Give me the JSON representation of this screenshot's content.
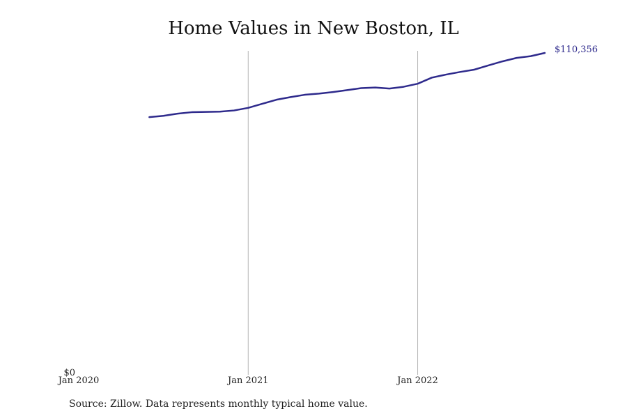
{
  "chart_data": {
    "type": "line",
    "title": "Home Values in New Boston, IL",
    "source": "Source: Zillow. Data represents monthly typical home value.",
    "xlabel": "",
    "ylabel": "",
    "x_ticks": [
      {
        "label": "Jan 2020",
        "date": "2020-01"
      },
      {
        "label": "Jan 2021",
        "date": "2021-01"
      },
      {
        "label": "Jan 2022",
        "date": "2022-01"
      }
    ],
    "y_ticks": [
      {
        "label": "$0",
        "value": 0
      }
    ],
    "ylim": [
      0,
      110356
    ],
    "xlim": [
      "2020-01",
      "2022-10"
    ],
    "grid": {
      "vertical": true,
      "horizontal": false
    },
    "line_color": "#2e2a8c",
    "last_value_label": "$110,356",
    "series": [
      {
        "x": [
          "2020-06",
          "2020-07",
          "2020-08",
          "2020-09",
          "2020-10",
          "2020-11",
          "2020-12",
          "2021-01",
          "2021-02",
          "2021-03",
          "2021-04",
          "2021-05",
          "2021-06",
          "2021-07",
          "2021-08",
          "2021-09",
          "2021-10",
          "2021-11",
          "2021-12",
          "2022-01",
          "2022-02",
          "2022-03",
          "2022-04",
          "2022-05",
          "2022-06",
          "2022-07",
          "2022-08",
          "2022-09",
          "2022-10"
        ],
        "values": [
          88250,
          88700,
          89450,
          89950,
          90050,
          90150,
          90550,
          91450,
          92850,
          94250,
          95150,
          95950,
          96350,
          96900,
          97550,
          98250,
          98450,
          98100,
          98700,
          99750,
          101850,
          102900,
          103800,
          104600,
          106050,
          107450,
          108650,
          109250,
          110356
        ]
      }
    ]
  }
}
